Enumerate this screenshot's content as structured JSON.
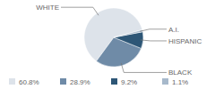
{
  "chart_data": {
    "type": "pie",
    "categories": [
      "WHITE",
      "BLACK",
      "HISPANIC",
      "A.I."
    ],
    "values": [
      60.8,
      28.9,
      9.2,
      1.1
    ],
    "value_labels": [
      "60.8%",
      "28.9%",
      "9.2%",
      "1.1%"
    ],
    "colors": [
      "#dde3ea",
      "#6f8ba7",
      "#2d5676",
      "#a7b9cb"
    ],
    "legend": "bottom"
  }
}
